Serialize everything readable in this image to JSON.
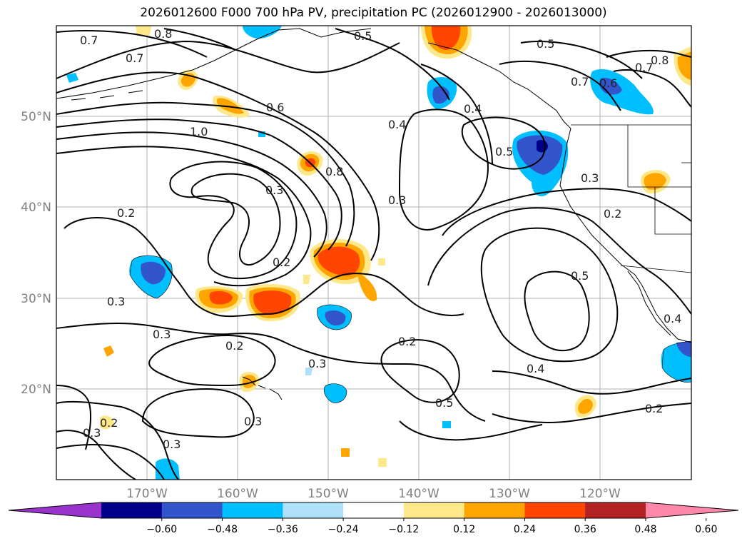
{
  "title": "2026012600 F000 700 hPa PV, precipitation PC (2026012900 - 2026013000)",
  "map": {
    "lat_labels": [
      "50°N",
      "40°N",
      "30°N",
      "20°N"
    ],
    "lon_labels": [
      "170°W",
      "160°W",
      "150°W",
      "140°W",
      "130°W",
      "120°W"
    ],
    "contour_labels": [
      "0.7",
      "0.8",
      "0.5",
      "0.5",
      "0.7",
      "0.8",
      "0.7",
      "0.7",
      "0.6",
      "0.6",
      "1.0",
      "0.4",
      "0.4",
      "0.5",
      "0.8",
      "0.3",
      "0.3",
      "0.3",
      "0.2",
      "0.2",
      "0.2",
      "0.3",
      "0.3",
      "0.2",
      "0.5",
      "0.2",
      "0.3",
      "0.4",
      "0.4",
      "0.5",
      "0.3",
      "0.3",
      "0.2",
      "0.3",
      "0.2"
    ]
  },
  "colorbar": {
    "tick_labels": [
      "−0.60",
      "−0.48",
      "−0.36",
      "−0.24",
      "−0.12",
      "0.12",
      "0.24",
      "0.36",
      "0.48",
      "0.60"
    ],
    "colors": [
      "#9933cc",
      "#00008b",
      "#3355cc",
      "#00bfff",
      "#aee0fa",
      "#ffffff",
      "#ffe88a",
      "#ffa500",
      "#ff4500",
      "#b22222",
      "#ff88aa"
    ]
  }
}
